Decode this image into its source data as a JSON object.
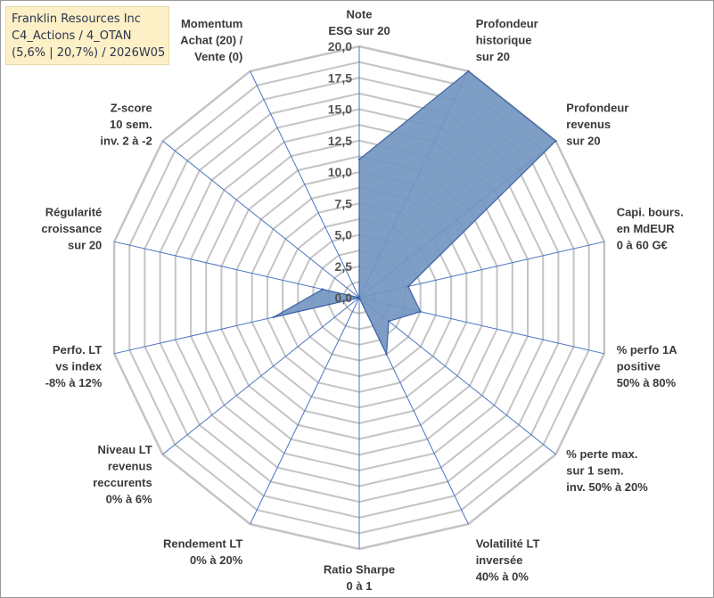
{
  "header": {
    "line1": "Franklin Resources Inc",
    "line2": "C4_Actions / 4_OTAN",
    "line3": "(5,6% | 20,7%) / 2026W05"
  },
  "colors": {
    "fill": "#7396c0",
    "stroke": "#3d62a6",
    "grid": "#c4c4c4",
    "spoke": "#4a74c4"
  },
  "chart_data": {
    "type": "radar",
    "title": "",
    "rmin": 0,
    "rmax": 20,
    "ticks": [
      "0,0",
      "2,5",
      "5,0",
      "7,5",
      "10,0",
      "12,5",
      "15,0",
      "17,5",
      "20,0"
    ],
    "axes": [
      {
        "label": [
          "Note",
          "ESG sur 20"
        ],
        "value": 11
      },
      {
        "label": [
          "Profondeur",
          "historique",
          "sur 20"
        ],
        "value": 20
      },
      {
        "label": [
          "Profondeur",
          "revenus",
          "sur 20"
        ],
        "value": 20
      },
      {
        "label": [
          "Capi. bours.",
          "en MdEUR",
          "0 à 60 G€"
        ],
        "value": 4
      },
      {
        "label": [
          "% perfo 1A",
          "positive",
          "50% à 80%"
        ],
        "value": 5
      },
      {
        "label": [
          "% perte max.",
          "sur 1 sem.",
          "inv. 50% à 20%"
        ],
        "value": 3
      },
      {
        "label": [
          "Volatilité LT",
          "inversée",
          "40% à 0%"
        ],
        "value": 5
      },
      {
        "label": [
          "Ratio Sharpe",
          "0 à 1"
        ],
        "value": 0
      },
      {
        "label": [
          "Rendement LT",
          "0% à 20%"
        ],
        "value": 0
      },
      {
        "label": [
          "Niveau LT",
          "revenus",
          "reccurents",
          "0% à 6%"
        ],
        "value": 0
      },
      {
        "label": [
          "Perfo. LT",
          "vs index",
          "-8% à 12%"
        ],
        "value": 7
      },
      {
        "label": [
          "Régularité",
          "croissance",
          "sur 20"
        ],
        "value": 3
      },
      {
        "label": [
          "Z-score",
          "10 sem.",
          "inv. 2 à -2"
        ],
        "value": 0
      },
      {
        "label": [
          "Momentum",
          "Achat (20) /",
          "Vente (0)"
        ],
        "value": 0
      }
    ]
  }
}
